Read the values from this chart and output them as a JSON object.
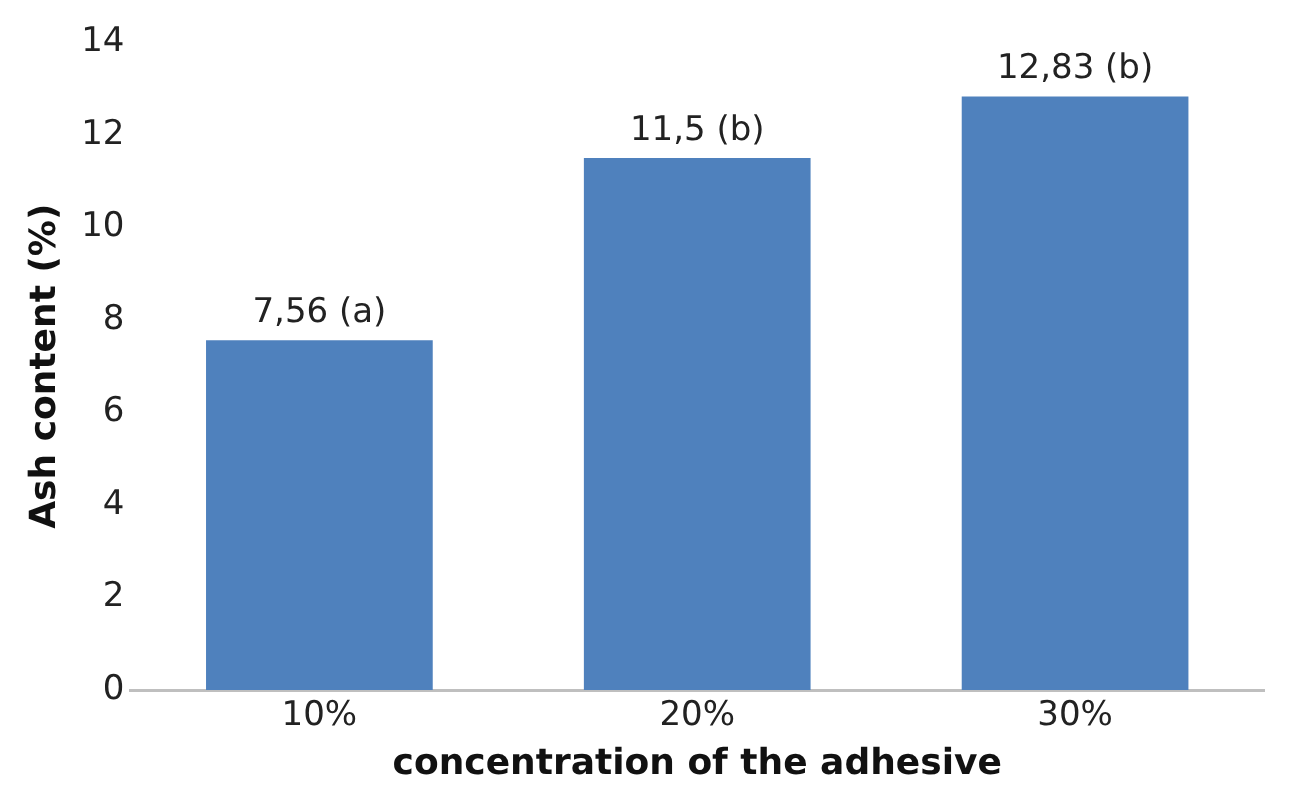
{
  "chart_data": {
    "type": "bar",
    "xlabel": "concentration of the adhesive",
    "ylabel": "Ash content (%)",
    "categories": [
      "10%",
      "20%",
      "30%"
    ],
    "values": [
      7.56,
      11.5,
      12.83
    ],
    "value_labels": [
      "7,56 (a)",
      "11,5 (b)",
      "12,83 (b)"
    ],
    "color": "#4f81bd",
    "ylim": [
      0,
      14
    ],
    "yticks": [
      0,
      2,
      4,
      6,
      8,
      10,
      12,
      14
    ],
    "grid": false,
    "legend": false
  }
}
